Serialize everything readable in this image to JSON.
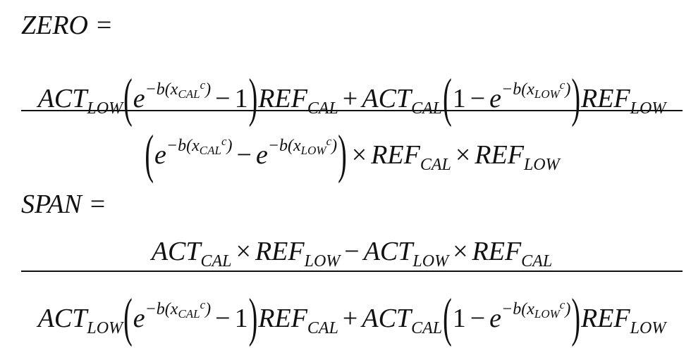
{
  "zero": {
    "label": "ZERO ="
  },
  "span": {
    "label": "SPAN ="
  },
  "sym": {
    "act": "ACT",
    "ref": "REF",
    "e": "e",
    "low": "LOW",
    "cal": "CAL",
    "minus": "−",
    "plus": "+",
    "times": "×",
    "one": "1",
    "lparen": "(",
    "rparen": ")",
    "exp_pre": "−b(x",
    "exp_c": "c",
    "exp_post": ")"
  }
}
